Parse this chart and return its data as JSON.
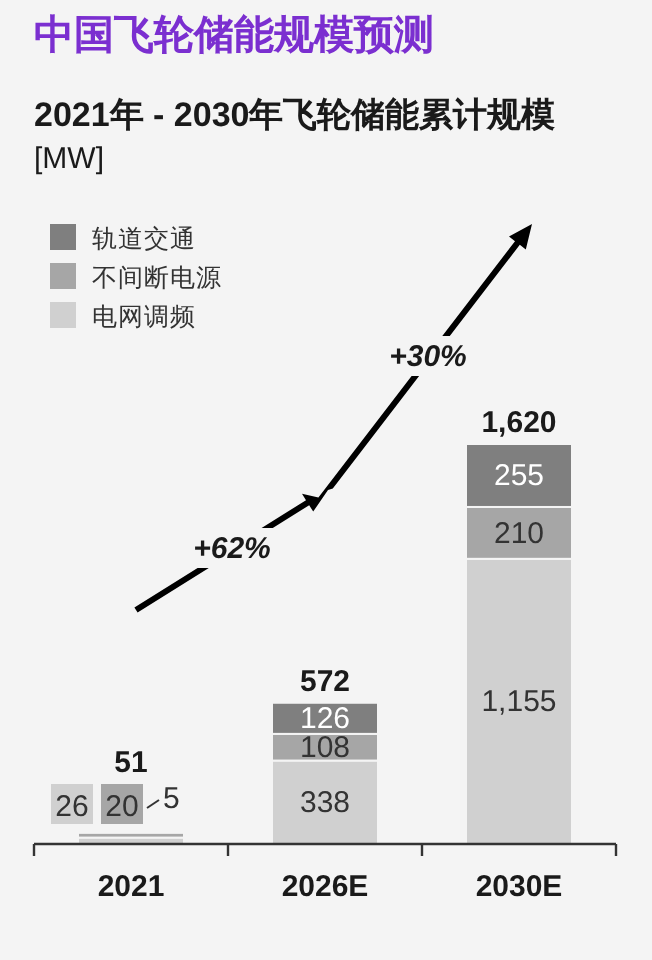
{
  "chart_data": {
    "type": "bar",
    "stacked": true,
    "title": "中国飞轮储能规模预测",
    "subtitle": "2021年 - 2030年飞轮储能累计规模",
    "categories": [
      "2021",
      "2026E",
      "2030E"
    ],
    "series": [
      {
        "name": "电网调频",
        "color": "#d0d0d0",
        "values": [
          26,
          338,
          1155
        ],
        "value_labels": [
          "26",
          "338",
          "1,155"
        ]
      },
      {
        "name": "不间断电源",
        "color": "#a6a6a6",
        "values": [
          20,
          108,
          210
        ],
        "value_labels": [
          "20",
          "108",
          "210"
        ]
      },
      {
        "name": "轨道交通",
        "color": "#7f7f7f",
        "values": [
          5,
          126,
          255
        ],
        "value_labels": [
          "5",
          "126",
          "255"
        ]
      }
    ],
    "totals": [
      "51",
      "572",
      "1,620"
    ],
    "annotations": [
      "[MW]",
      "+62%",
      "+30%"
    ],
    "legend": "top left"
  }
}
